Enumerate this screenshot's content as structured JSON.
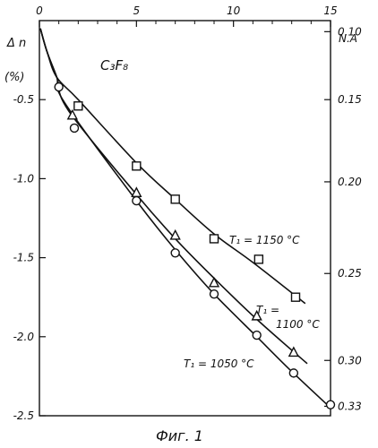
{
  "chart_data": {
    "type": "scatter",
    "x_top_label": "",
    "left_axis": {
      "label_line1": "Δ n",
      "label_line2": "(%)",
      "ylim": [
        -2.5,
        0
      ],
      "ticks": [
        -0.5,
        -1.0,
        -1.5,
        -2.0,
        -2.5
      ],
      "tick_labels": [
        "-0.5",
        "-1.0",
        "-1.5",
        "-2.0",
        "-2.5"
      ]
    },
    "x_axis": {
      "xlim": [
        0,
        15
      ],
      "ticks": [
        0,
        5,
        10,
        15
      ],
      "tick_labels": [
        "0",
        "5",
        "10",
        "15"
      ]
    },
    "right_axis": {
      "label": "N.A",
      "tick_labels": [
        "0.10",
        "0.15",
        "0.20",
        "0.25",
        "0.30",
        "0.33"
      ],
      "tick_positions_dn": [
        -0.07,
        -0.5,
        -1.02,
        -1.6,
        -2.15,
        -2.44
      ]
    },
    "gas_label": "C₃F₈",
    "caption": "Фиг. 1",
    "series": [
      {
        "name": "T₁ = 1150 °C",
        "marker": "square",
        "points": [
          [
            2.0,
            -0.54
          ],
          [
            5.0,
            -0.92
          ],
          [
            7.0,
            -1.13
          ],
          [
            9.0,
            -1.38
          ],
          [
            11.3,
            -1.51
          ],
          [
            13.2,
            -1.75
          ]
        ],
        "curve": [
          [
            2.0,
            -0.5
          ],
          [
            5.0,
            -0.9
          ],
          [
            7.0,
            -1.13
          ],
          [
            9.0,
            -1.35
          ],
          [
            11.0,
            -1.53
          ],
          [
            13.7,
            -1.79
          ]
        ]
      },
      {
        "name": "T₁ = 1100 °C",
        "marker": "triangle",
        "points": [
          [
            1.7,
            -0.6
          ],
          [
            5.0,
            -1.09
          ],
          [
            7.0,
            -1.36
          ],
          [
            9.0,
            -1.66
          ],
          [
            11.2,
            -1.87
          ],
          [
            13.1,
            -2.1
          ]
        ],
        "curve": [
          [
            1.5,
            -0.57
          ],
          [
            5.0,
            -1.1
          ],
          [
            7.0,
            -1.38
          ],
          [
            9.0,
            -1.63
          ],
          [
            11.2,
            -1.89
          ],
          [
            13.8,
            -2.17
          ]
        ]
      },
      {
        "name": "T₁ = 1050 °C",
        "marker": "circle",
        "points": [
          [
            1.0,
            -0.42
          ],
          [
            1.8,
            -0.68
          ],
          [
            5.0,
            -1.14
          ],
          [
            7.0,
            -1.47
          ],
          [
            9.0,
            -1.73
          ],
          [
            11.2,
            -1.99
          ],
          [
            13.1,
            -2.23
          ],
          [
            15.0,
            -2.43
          ]
        ],
        "curve": [
          [
            1.3,
            -0.52
          ],
          [
            5.0,
            -1.14
          ],
          [
            7.0,
            -1.45
          ],
          [
            9.0,
            -1.73
          ],
          [
            11.2,
            -2.0
          ],
          [
            13.0,
            -2.22
          ],
          [
            15.0,
            -2.45
          ]
        ]
      }
    ],
    "shared_curve_start": [
      [
        0.05,
        -0.05
      ],
      [
        0.4,
        -0.2
      ],
      [
        0.9,
        -0.36
      ]
    ],
    "annotations": {
      "t1150": "T₁ = 1150 °C",
      "t1100_line1": "T₁ =",
      "t1100_line2": "1100 °C",
      "t1050": "T₁ = 1050 °C"
    }
  }
}
